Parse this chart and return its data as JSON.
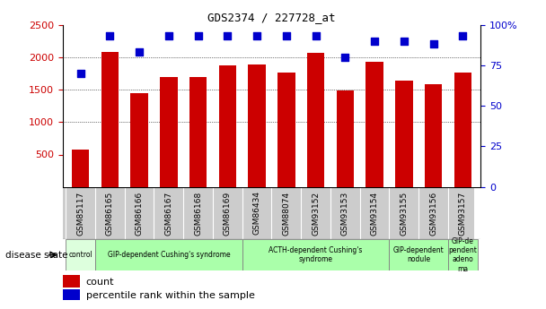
{
  "title": "GDS2374 / 227728_at",
  "samples": [
    "GSM85117",
    "GSM86165",
    "GSM86166",
    "GSM86167",
    "GSM86168",
    "GSM86169",
    "GSM86434",
    "GSM88074",
    "GSM93152",
    "GSM93153",
    "GSM93154",
    "GSM93155",
    "GSM93156",
    "GSM93157"
  ],
  "counts": [
    575,
    2080,
    1440,
    1690,
    1690,
    1880,
    1890,
    1760,
    2060,
    1490,
    1930,
    1640,
    1590,
    1760
  ],
  "percentile_ranks": [
    70,
    93,
    83,
    93,
    93,
    93,
    93,
    93,
    93,
    80,
    90,
    90,
    88,
    93
  ],
  "bar_color": "#CC0000",
  "dot_color": "#0000CC",
  "ylim_left": [
    500,
    2500
  ],
  "ylim_right": [
    0,
    100
  ],
  "yticks_left": [
    500,
    1000,
    1500,
    2000,
    2500
  ],
  "yticks_right": [
    0,
    25,
    50,
    75,
    100
  ],
  "grid_lines": [
    1000,
    1500,
    2000
  ],
  "disease_groups": [
    {
      "label": "control",
      "start": 0,
      "end": 1,
      "color": "#DDFFDD"
    },
    {
      "label": "GIP-dependent Cushing's syndrome",
      "start": 1,
      "end": 6,
      "color": "#AAFFAA"
    },
    {
      "label": "ACTH-dependent Cushing's\nsyndrome",
      "start": 6,
      "end": 11,
      "color": "#AAFFAA"
    },
    {
      "label": "GIP-dependent\nnodule",
      "start": 11,
      "end": 13,
      "color": "#AAFFAA"
    },
    {
      "label": "GIP-de\npendent\nadeno\nma",
      "start": 13,
      "end": 14,
      "color": "#AAFFAA"
    }
  ],
  "legend_count_label": "count",
  "legend_pct_label": "percentile rank within the sample",
  "disease_state_label": "disease state",
  "bar_color_label": "#CC0000",
  "dot_color_label": "#0000CC"
}
